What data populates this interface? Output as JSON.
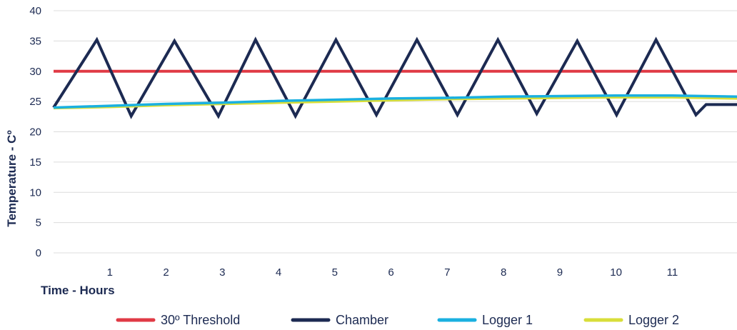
{
  "chart_data": {
    "type": "line",
    "xlabel": "Time - Hours",
    "ylabel": "Temperature - Cº",
    "xlim": [
      0,
      12.15
    ],
    "ylim": [
      0,
      40
    ],
    "y_ticks": [
      0,
      5,
      10,
      15,
      20,
      25,
      30,
      35,
      40
    ],
    "x_ticks": [
      1,
      2,
      3,
      4,
      5,
      6,
      7,
      8,
      9,
      10,
      11
    ],
    "grid": true,
    "legend_position": "bottom",
    "series": [
      {
        "name": "30º Threshold",
        "color": "#e03a45",
        "x": [
          0,
          12.15
        ],
        "y": [
          30,
          30
        ]
      },
      {
        "name": "Chamber",
        "color": "#1c2a52",
        "x": [
          0,
          0.77,
          1.38,
          2.15,
          2.93,
          3.59,
          4.3,
          5.02,
          5.74,
          6.46,
          7.18,
          7.9,
          8.59,
          9.31,
          10.01,
          10.71,
          11.42,
          11.6,
          12.15
        ],
        "y": [
          24,
          35.2,
          22.6,
          35,
          22.6,
          35.2,
          22.6,
          35.2,
          22.8,
          35.2,
          22.8,
          35.2,
          23,
          35,
          22.8,
          35.2,
          22.8,
          24.5,
          24.5
        ]
      },
      {
        "name": "Logger 1",
        "color": "#1ab0e0",
        "x": [
          0,
          1,
          2,
          3,
          4,
          5,
          6,
          7,
          8,
          9,
          10,
          11,
          12.15
        ],
        "y": [
          24,
          24.3,
          24.6,
          24.8,
          25.1,
          25.3,
          25.5,
          25.6,
          25.8,
          25.9,
          26,
          26,
          25.8
        ]
      },
      {
        "name": "Logger 2",
        "color": "#d8de3a",
        "x": [
          0,
          1,
          2,
          3,
          4,
          5,
          6,
          7,
          8,
          9,
          10,
          11,
          12.15
        ],
        "y": [
          23.9,
          24.1,
          24.4,
          24.6,
          24.8,
          25,
          25.2,
          25.4,
          25.5,
          25.6,
          25.7,
          25.7,
          25.5
        ]
      }
    ]
  }
}
